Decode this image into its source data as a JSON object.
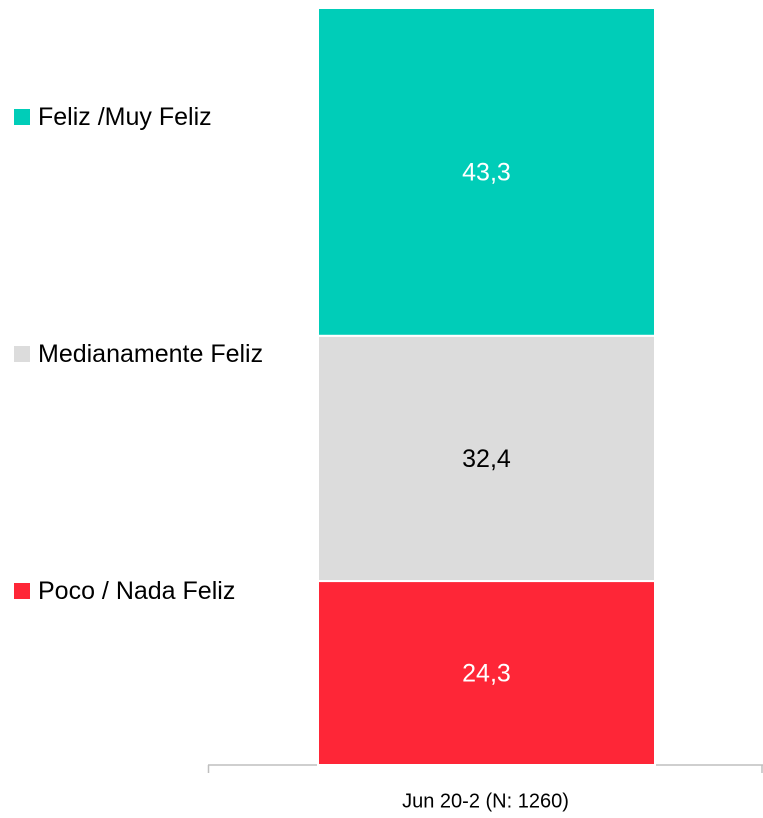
{
  "chart_data": {
    "type": "stacked_bar",
    "categories": [
      "Jun 20-2 (N: 1260)"
    ],
    "series": [
      {
        "name": "Feliz /Muy Feliz",
        "color": "#00cdb8",
        "values": [
          43.3
        ],
        "value_labels": [
          "43,3"
        ]
      },
      {
        "name": "Medianamente Feliz",
        "color": "#dcdcdc",
        "values": [
          32.4
        ],
        "value_labels": [
          "32,4"
        ]
      },
      {
        "name": "Poco / Nada Feliz",
        "color": "#fe2637",
        "values": [
          24.3
        ],
        "value_labels": [
          "24,3"
        ]
      }
    ],
    "legend": "left"
  }
}
